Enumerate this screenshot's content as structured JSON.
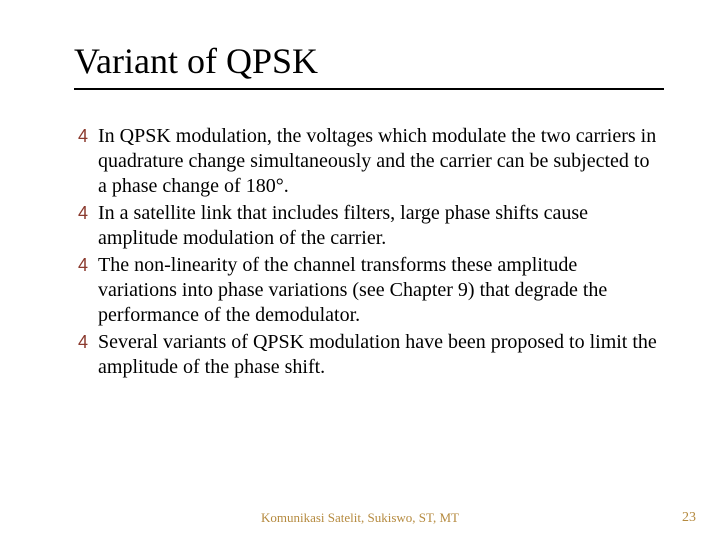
{
  "slide": {
    "title": "Variant of QPSK",
    "bullets": [
      "In QPSK modulation, the voltages which modulate the two carriers in quadrature change simultaneously and the carrier can be subjected to a phase change of 180°.",
      "In a satellite link that includes filters, large phase shifts cause amplitude modulation of the carrier.",
      "The non-linearity of the channel transforms these amplitude variations into phase variations (see Chapter 9) that degrade the performance of the demodulator.",
      "Several variants of QPSK modulation have been proposed to limit the amplitude of the phase shift."
    ],
    "footer_center": "Komunikasi Satelit, Sukiswo, ST, MT",
    "page_number": "23",
    "colors": {
      "bullet_marker": "#8b3a2e",
      "footer_text": "#b58a3f",
      "body_text": "#000000",
      "background": "#ffffff"
    },
    "typography": {
      "title_fontsize": 36,
      "body_fontsize": 20,
      "footer_fontsize": 13,
      "font_family": "Times New Roman"
    }
  }
}
